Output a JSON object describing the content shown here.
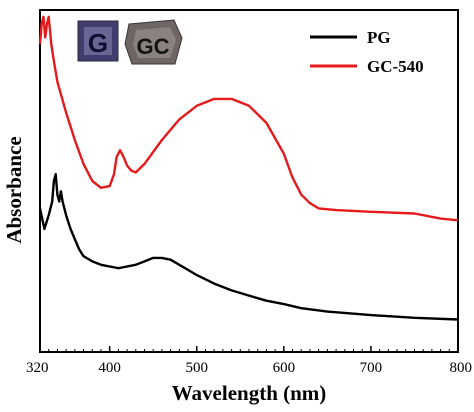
{
  "chart_data": {
    "type": "line",
    "xlabel": "Wavelength (nm)",
    "ylabel": "Absorbance",
    "xlim": [
      320,
      800
    ],
    "ylim": [
      0,
      1
    ],
    "x_ticks": [
      "320",
      "400",
      "500",
      "600",
      "700",
      "800"
    ],
    "y_ticks_shown": false,
    "grid": false,
    "legend": {
      "placement": "top-right"
    },
    "series": [
      {
        "name": "PG",
        "color": "#000000",
        "points": [
          [
            320,
            0.42
          ],
          [
            325,
            0.36
          ],
          [
            330,
            0.4
          ],
          [
            334,
            0.44
          ],
          [
            336,
            0.5
          ],
          [
            338,
            0.52
          ],
          [
            340,
            0.46
          ],
          [
            342,
            0.44
          ],
          [
            344,
            0.47
          ],
          [
            346,
            0.44
          ],
          [
            350,
            0.4
          ],
          [
            355,
            0.36
          ],
          [
            360,
            0.33
          ],
          [
            365,
            0.3
          ],
          [
            370,
            0.28
          ],
          [
            380,
            0.265
          ],
          [
            390,
            0.255
          ],
          [
            400,
            0.25
          ],
          [
            410,
            0.245
          ],
          [
            420,
            0.25
          ],
          [
            430,
            0.255
          ],
          [
            440,
            0.265
          ],
          [
            450,
            0.275
          ],
          [
            460,
            0.275
          ],
          [
            470,
            0.27
          ],
          [
            480,
            0.255
          ],
          [
            490,
            0.24
          ],
          [
            500,
            0.225
          ],
          [
            520,
            0.2
          ],
          [
            540,
            0.18
          ],
          [
            560,
            0.165
          ],
          [
            580,
            0.15
          ],
          [
            600,
            0.14
          ],
          [
            620,
            0.128
          ],
          [
            650,
            0.118
          ],
          [
            700,
            0.108
          ],
          [
            750,
            0.1
          ],
          [
            800,
            0.095
          ]
        ]
      },
      {
        "name": "GC-540",
        "color": "#e41a1c",
        "points": [
          [
            320,
            0.9
          ],
          [
            322,
            0.96
          ],
          [
            324,
            0.98
          ],
          [
            326,
            0.92
          ],
          [
            328,
            0.96
          ],
          [
            330,
            0.98
          ],
          [
            333,
            0.9
          ],
          [
            336,
            0.85
          ],
          [
            340,
            0.79
          ],
          [
            350,
            0.7
          ],
          [
            360,
            0.62
          ],
          [
            370,
            0.55
          ],
          [
            380,
            0.5
          ],
          [
            390,
            0.48
          ],
          [
            400,
            0.485
          ],
          [
            405,
            0.52
          ],
          [
            408,
            0.57
          ],
          [
            412,
            0.59
          ],
          [
            416,
            0.57
          ],
          [
            420,
            0.545
          ],
          [
            425,
            0.53
          ],
          [
            430,
            0.525
          ],
          [
            440,
            0.55
          ],
          [
            460,
            0.62
          ],
          [
            480,
            0.68
          ],
          [
            500,
            0.72
          ],
          [
            520,
            0.74
          ],
          [
            540,
            0.74
          ],
          [
            560,
            0.72
          ],
          [
            580,
            0.67
          ],
          [
            600,
            0.58
          ],
          [
            610,
            0.51
          ],
          [
            620,
            0.46
          ],
          [
            630,
            0.435
          ],
          [
            640,
            0.42
          ],
          [
            660,
            0.415
          ],
          [
            700,
            0.41
          ],
          [
            750,
            0.405
          ],
          [
            780,
            0.39
          ],
          [
            800,
            0.385
          ]
        ]
      }
    ]
  },
  "inset": {
    "sample1_letter": "G",
    "sample2_letters": "GC"
  }
}
